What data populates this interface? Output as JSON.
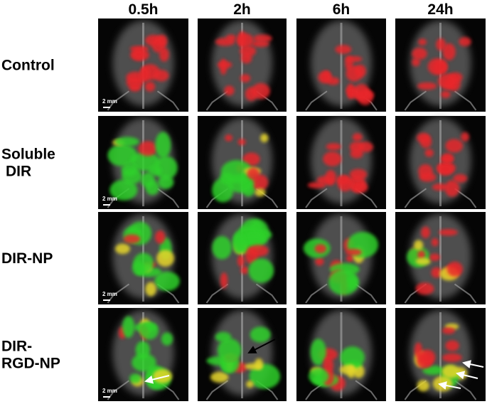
{
  "columns": [
    "0.5h",
    "2h",
    "6h",
    "24h"
  ],
  "rows": [
    {
      "label_lines": [
        "Control"
      ]
    },
    {
      "label_lines": [
        "Soluble",
        "DIR"
      ]
    },
    {
      "label_lines": [
        "DIR-NP"
      ]
    },
    {
      "label_lines": [
        "DIR-",
        "RGD-NP"
      ]
    }
  ],
  "scale_bar": "2 mm"
}
